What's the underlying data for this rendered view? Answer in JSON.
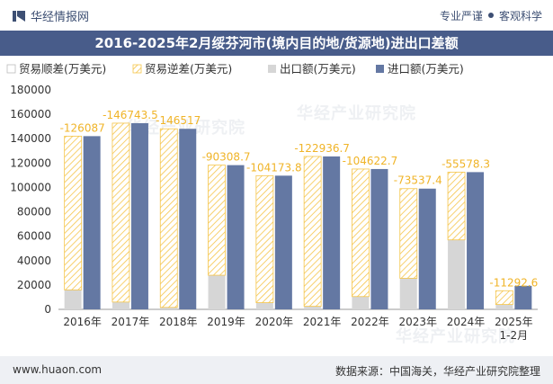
{
  "header": {
    "brand": "华经情报网",
    "slogan_left": "专业严谨",
    "slogan_right": "客观科学"
  },
  "footer": {
    "site": "www.huaon.com",
    "source": "数据来源：中国海关，华经产业研究院整理"
  },
  "watermark": "华经产业研究院",
  "colors": {
    "title_bg": "#485c8a",
    "export": "#d6d6d6",
    "import": "#6478a3",
    "deficit": "#f5c54a",
    "deficit_label": "#f0b428"
  },
  "chart_data": {
    "type": "bar",
    "title": "2016-2025年2月绥芬河市(境内目的地/货源地)进出口差额",
    "categories": [
      "2016年",
      "2017年",
      "2018年",
      "2019年",
      "2020年",
      "2021年",
      "2022年",
      "2023年",
      "2024年",
      "2025年\n1-2月"
    ],
    "series": [
      {
        "name": "贸易顺差(万美元)",
        "values": [
          null,
          null,
          null,
          null,
          null,
          null,
          null,
          null,
          null,
          null
        ]
      },
      {
        "name": "贸易逆差(万美元)",
        "values": [
          -126087,
          -146743.5,
          -146517,
          -90308.7,
          -104173.8,
          -122936.7,
          -104622.7,
          -73537.4,
          -55578.3,
          -11292.6
        ]
      },
      {
        "name": "出口额(万美元)",
        "values": [
          16000,
          6000,
          1600,
          28000,
          5500,
          2500,
          10500,
          25500,
          57000,
          4000
        ]
      },
      {
        "name": "进口额(万美元)",
        "values": [
          142087,
          152743.5,
          148117,
          118308.7,
          109673.8,
          125436.7,
          115122.7,
          99037.4,
          112578.3,
          19292.6
        ]
      }
    ],
    "data_labels": [
      "-126087",
      "-146743.5",
      "-146517",
      "-90308.7",
      "-104173.8",
      "-122936.7",
      "-104622.7",
      "-73537.4",
      "-55578.3",
      "-11292.6"
    ],
    "y_ticks": [
      0,
      20000,
      40000,
      60000,
      80000,
      100000,
      120000,
      140000,
      160000,
      180000
    ],
    "ylim": [
      0,
      180000
    ],
    "legend_position": "top-left",
    "grid": false
  }
}
